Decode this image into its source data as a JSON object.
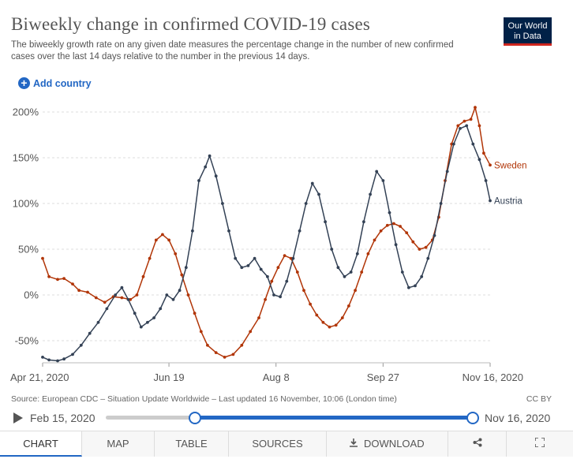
{
  "header": {
    "title": "Biweekly change in confirmed COVID-19 cases",
    "subtitle": "The biweekly growth rate on any given date measures the percentage change in the number of new confirmed cases over the last 14 days relative to the number in the previous 14 days.",
    "logo_line1": "Our World",
    "logo_line2": "in Data",
    "brand_color": "#002147",
    "brand_accent": "#ce261e"
  },
  "controls": {
    "add_country_label": "Add country",
    "add_country_icon": "plus-circle-icon"
  },
  "footer": {
    "source": "Source: European CDC – Situation Update Worldwide – Last updated 16 November, 10:06 (London time)",
    "license": "CC BY"
  },
  "timeline": {
    "start_date": "Feb 15, 2020",
    "end_date": "Nov 16, 2020",
    "selected_start_fraction": 0.24,
    "selected_end_fraction": 1.0
  },
  "tabs": [
    {
      "label": "CHART",
      "icon": ""
    },
    {
      "label": "MAP",
      "icon": ""
    },
    {
      "label": "TABLE",
      "icon": ""
    },
    {
      "label": "SOURCES",
      "icon": ""
    },
    {
      "label": "DOWNLOAD",
      "icon": "download-icon"
    },
    {
      "label": "",
      "icon": "share-icon"
    },
    {
      "label": "",
      "icon": "fullscreen-icon"
    }
  ],
  "chart_data": {
    "type": "line",
    "title": "Biweekly change in confirmed COVID-19 cases",
    "ylabel": "",
    "xlabel": "",
    "x_range": [
      "2020-04-21",
      "2020-11-16"
    ],
    "ylim": [
      -70,
      210
    ],
    "y_ticks": [
      -50,
      0,
      50,
      100,
      150,
      200
    ],
    "y_tick_labels": [
      "-50%",
      "0%",
      "50%",
      "100%",
      "150%",
      "200%"
    ],
    "x_ticks": [
      "2020-04-21",
      "2020-06-19",
      "2020-08-08",
      "2020-09-27",
      "2020-11-16"
    ],
    "x_tick_labels": [
      "Apr 21, 2020",
      "Jun 19",
      "Aug 8",
      "Sep 27",
      "Nov 16, 2020"
    ],
    "grid": "horizontal dashed",
    "legend": "inline labels at line ends",
    "series": [
      {
        "name": "Sweden",
        "color": "#b13507",
        "points": [
          [
            "2020-04-21",
            40
          ],
          [
            "2020-04-24",
            20
          ],
          [
            "2020-04-28",
            17
          ],
          [
            "2020-05-01",
            18
          ],
          [
            "2020-05-05",
            12
          ],
          [
            "2020-05-08",
            5
          ],
          [
            "2020-05-12",
            3
          ],
          [
            "2020-05-16",
            -3
          ],
          [
            "2020-05-20",
            -8
          ],
          [
            "2020-05-24",
            -2
          ],
          [
            "2020-05-28",
            -3
          ],
          [
            "2020-06-01",
            -5
          ],
          [
            "2020-06-04",
            0
          ],
          [
            "2020-06-07",
            20
          ],
          [
            "2020-06-10",
            40
          ],
          [
            "2020-06-13",
            60
          ],
          [
            "2020-06-16",
            66
          ],
          [
            "2020-06-19",
            60
          ],
          [
            "2020-06-22",
            45
          ],
          [
            "2020-06-25",
            22
          ],
          [
            "2020-06-28",
            0
          ],
          [
            "2020-07-01",
            -20
          ],
          [
            "2020-07-04",
            -40
          ],
          [
            "2020-07-07",
            -55
          ],
          [
            "2020-07-11",
            -63
          ],
          [
            "2020-07-15",
            -68
          ],
          [
            "2020-07-19",
            -65
          ],
          [
            "2020-07-23",
            -55
          ],
          [
            "2020-07-27",
            -40
          ],
          [
            "2020-07-31",
            -25
          ],
          [
            "2020-08-03",
            -5
          ],
          [
            "2020-08-06",
            15
          ],
          [
            "2020-08-09",
            30
          ],
          [
            "2020-08-12",
            43
          ],
          [
            "2020-08-15",
            40
          ],
          [
            "2020-08-18",
            25
          ],
          [
            "2020-08-21",
            5
          ],
          [
            "2020-08-24",
            -10
          ],
          [
            "2020-08-27",
            -22
          ],
          [
            "2020-08-30",
            -30
          ],
          [
            "2020-09-02",
            -35
          ],
          [
            "2020-09-05",
            -33
          ],
          [
            "2020-09-08",
            -25
          ],
          [
            "2020-09-11",
            -12
          ],
          [
            "2020-09-14",
            5
          ],
          [
            "2020-09-17",
            25
          ],
          [
            "2020-09-20",
            45
          ],
          [
            "2020-09-23",
            60
          ],
          [
            "2020-09-26",
            70
          ],
          [
            "2020-09-29",
            76
          ],
          [
            "2020-10-02",
            78
          ],
          [
            "2020-10-05",
            75
          ],
          [
            "2020-10-08",
            68
          ],
          [
            "2020-10-11",
            58
          ],
          [
            "2020-10-14",
            50
          ],
          [
            "2020-10-17",
            52
          ],
          [
            "2020-10-20",
            60
          ],
          [
            "2020-10-23",
            85
          ],
          [
            "2020-10-26",
            125
          ],
          [
            "2020-10-29",
            165
          ],
          [
            "2020-11-01",
            185
          ],
          [
            "2020-11-04",
            190
          ],
          [
            "2020-11-07",
            192
          ],
          [
            "2020-11-09",
            205
          ],
          [
            "2020-11-11",
            185
          ],
          [
            "2020-11-13",
            155
          ],
          [
            "2020-11-16",
            142
          ]
        ]
      },
      {
        "name": "Austria",
        "color": "#334155",
        "points": [
          [
            "2020-04-21",
            -68
          ],
          [
            "2020-04-24",
            -71
          ],
          [
            "2020-04-28",
            -72
          ],
          [
            "2020-05-01",
            -70
          ],
          [
            "2020-05-05",
            -65
          ],
          [
            "2020-05-09",
            -55
          ],
          [
            "2020-05-13",
            -42
          ],
          [
            "2020-05-17",
            -30
          ],
          [
            "2020-05-21",
            -15
          ],
          [
            "2020-05-25",
            0
          ],
          [
            "2020-05-28",
            8
          ],
          [
            "2020-05-31",
            -5
          ],
          [
            "2020-06-03",
            -20
          ],
          [
            "2020-06-06",
            -35
          ],
          [
            "2020-06-09",
            -30
          ],
          [
            "2020-06-12",
            -25
          ],
          [
            "2020-06-15",
            -15
          ],
          [
            "2020-06-18",
            0
          ],
          [
            "2020-06-21",
            -5
          ],
          [
            "2020-06-24",
            5
          ],
          [
            "2020-06-27",
            30
          ],
          [
            "2020-06-30",
            70
          ],
          [
            "2020-07-03",
            125
          ],
          [
            "2020-07-06",
            140
          ],
          [
            "2020-07-08",
            152
          ],
          [
            "2020-07-11",
            130
          ],
          [
            "2020-07-14",
            100
          ],
          [
            "2020-07-17",
            70
          ],
          [
            "2020-07-20",
            40
          ],
          [
            "2020-07-23",
            30
          ],
          [
            "2020-07-26",
            32
          ],
          [
            "2020-07-29",
            40
          ],
          [
            "2020-08-01",
            28
          ],
          [
            "2020-08-04",
            20
          ],
          [
            "2020-08-07",
            0
          ],
          [
            "2020-08-10",
            -2
          ],
          [
            "2020-08-13",
            15
          ],
          [
            "2020-08-16",
            40
          ],
          [
            "2020-08-19",
            70
          ],
          [
            "2020-08-22",
            100
          ],
          [
            "2020-08-25",
            122
          ],
          [
            "2020-08-28",
            110
          ],
          [
            "2020-08-31",
            80
          ],
          [
            "2020-09-03",
            50
          ],
          [
            "2020-09-06",
            30
          ],
          [
            "2020-09-09",
            20
          ],
          [
            "2020-09-12",
            25
          ],
          [
            "2020-09-15",
            45
          ],
          [
            "2020-09-18",
            80
          ],
          [
            "2020-09-21",
            110
          ],
          [
            "2020-09-24",
            135
          ],
          [
            "2020-09-27",
            125
          ],
          [
            "2020-09-30",
            90
          ],
          [
            "2020-10-03",
            55
          ],
          [
            "2020-10-06",
            25
          ],
          [
            "2020-10-09",
            8
          ],
          [
            "2020-10-12",
            10
          ],
          [
            "2020-10-15",
            20
          ],
          [
            "2020-10-18",
            40
          ],
          [
            "2020-10-21",
            65
          ],
          [
            "2020-10-24",
            100
          ],
          [
            "2020-10-27",
            135
          ],
          [
            "2020-10-30",
            165
          ],
          [
            "2020-11-02",
            182
          ],
          [
            "2020-11-05",
            185
          ],
          [
            "2020-11-08",
            165
          ],
          [
            "2020-11-11",
            148
          ],
          [
            "2020-11-14",
            125
          ],
          [
            "2020-11-16",
            103
          ]
        ]
      }
    ]
  }
}
